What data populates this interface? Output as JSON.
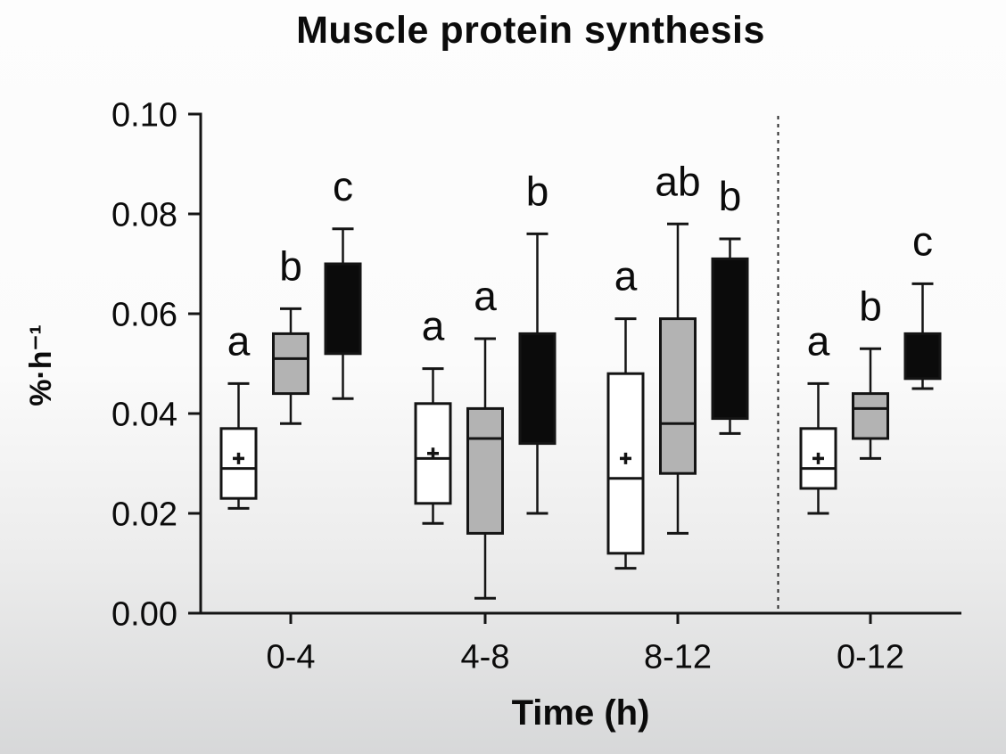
{
  "chart_data": {
    "type": "boxplot",
    "title": "Muscle protein synthesis",
    "ylabel": "%·h⁻¹",
    "xlabel": "Time (h)",
    "categories": [
      "0-4",
      "4-8",
      "8-12",
      "0-12"
    ],
    "ylim": [
      0,
      0.1
    ],
    "yticks": [
      0.0,
      0.02,
      0.04,
      0.06,
      0.08,
      0.1
    ],
    "ytick_labels": [
      "0.00",
      "0.02",
      "0.04",
      "0.06",
      "0.08",
      "0.10"
    ],
    "grid": false,
    "legend": "none",
    "separator_after_category_index": 2,
    "colors": {
      "stroke": "#141414",
      "white_fill": "#ffffff",
      "gray_fill": "#b3b3b3",
      "black_fill": "#0b0b0b",
      "separator": "#2a2a2a"
    },
    "series": [
      {
        "name": "white",
        "fill_key": "white_fill",
        "boxes": [
          {
            "category": "0-4",
            "whisker_low": 0.021,
            "q1": 0.023,
            "median": 0.029,
            "q3": 0.037,
            "whisker_high": 0.046,
            "mean": 0.031,
            "sig": "a"
          },
          {
            "category": "4-8",
            "whisker_low": 0.018,
            "q1": 0.022,
            "median": 0.031,
            "q3": 0.042,
            "whisker_high": 0.049,
            "mean": 0.032,
            "sig": "a"
          },
          {
            "category": "8-12",
            "whisker_low": 0.009,
            "q1": 0.012,
            "median": 0.027,
            "q3": 0.048,
            "whisker_high": 0.059,
            "mean": 0.031,
            "sig": "a"
          },
          {
            "category": "0-12",
            "whisker_low": 0.02,
            "q1": 0.025,
            "median": 0.029,
            "q3": 0.037,
            "whisker_high": 0.046,
            "mean": 0.031,
            "sig": "a"
          }
        ]
      },
      {
        "name": "grey",
        "fill_key": "gray_fill",
        "boxes": [
          {
            "category": "0-4",
            "whisker_low": 0.038,
            "q1": 0.044,
            "median": 0.051,
            "q3": 0.056,
            "whisker_high": 0.061,
            "mean": null,
            "sig": "b"
          },
          {
            "category": "4-8",
            "whisker_low": 0.003,
            "q1": 0.016,
            "median": 0.035,
            "q3": 0.041,
            "whisker_high": 0.055,
            "mean": null,
            "sig": "a"
          },
          {
            "category": "8-12",
            "whisker_low": 0.016,
            "q1": 0.028,
            "median": 0.038,
            "q3": 0.059,
            "whisker_high": 0.078,
            "mean": null,
            "sig": "ab"
          },
          {
            "category": "0-12",
            "whisker_low": 0.031,
            "q1": 0.035,
            "median": 0.041,
            "q3": 0.044,
            "whisker_high": 0.053,
            "mean": null,
            "sig": "b"
          }
        ]
      },
      {
        "name": "black",
        "fill_key": "black_fill",
        "boxes": [
          {
            "category": "0-4",
            "whisker_low": 0.043,
            "q1": 0.052,
            "median": null,
            "q3": 0.07,
            "whisker_high": 0.077,
            "mean": null,
            "sig": "c"
          },
          {
            "category": "4-8",
            "whisker_low": 0.02,
            "q1": 0.034,
            "median": null,
            "q3": 0.056,
            "whisker_high": 0.076,
            "mean": null,
            "sig": "b"
          },
          {
            "category": "8-12",
            "whisker_low": 0.036,
            "q1": 0.039,
            "median": null,
            "q3": 0.071,
            "whisker_high": 0.075,
            "mean": null,
            "sig": "b"
          },
          {
            "category": "0-12",
            "whisker_low": 0.045,
            "q1": 0.047,
            "median": null,
            "q3": 0.056,
            "whisker_high": 0.066,
            "mean": null,
            "sig": "c"
          }
        ]
      }
    ]
  }
}
